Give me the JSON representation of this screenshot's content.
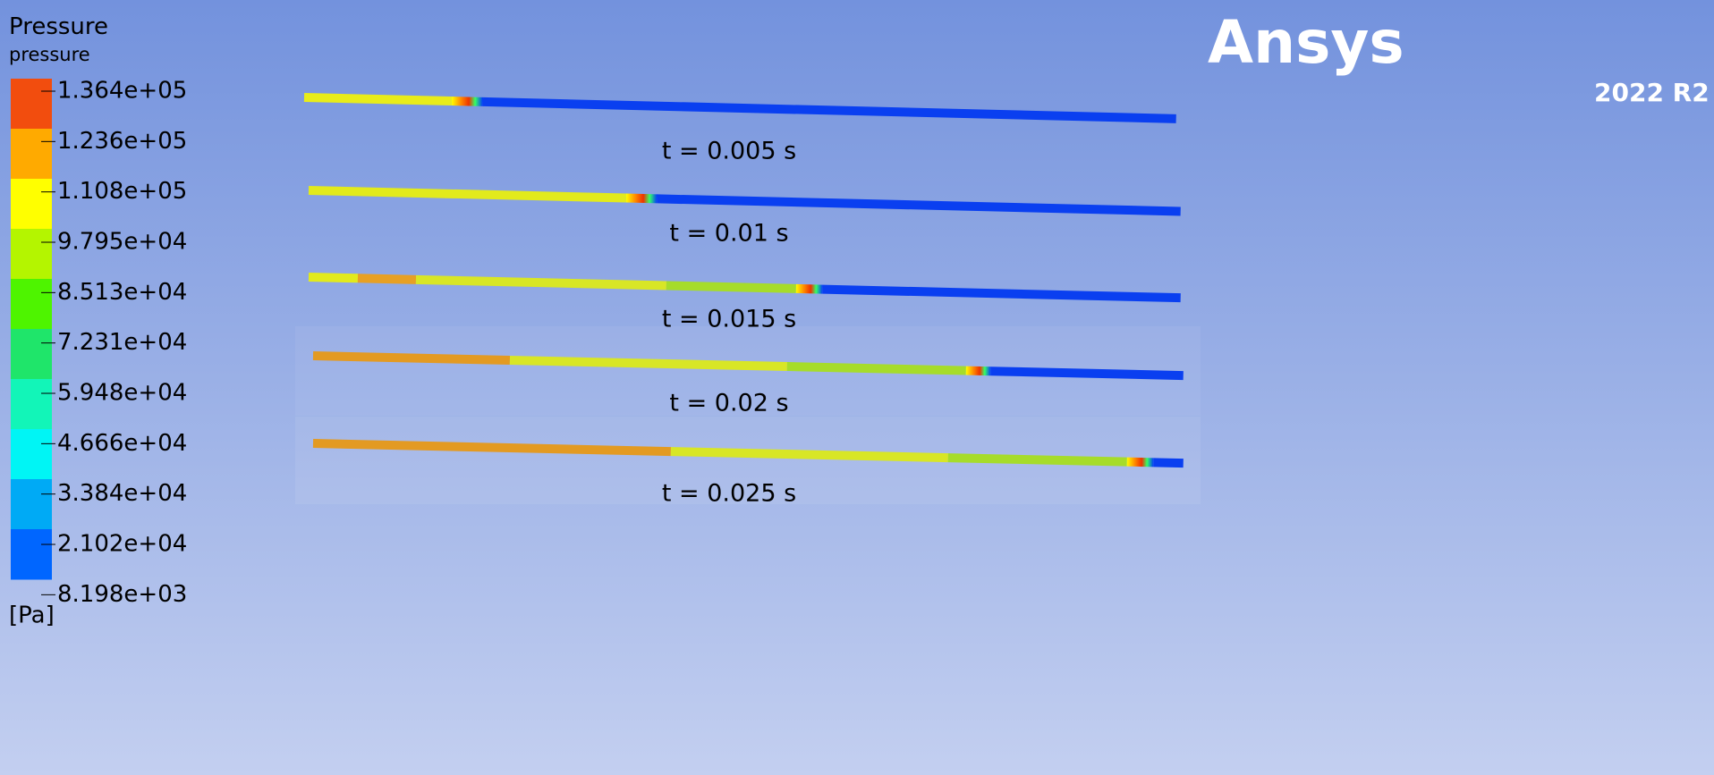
{
  "legend": {
    "title": "Pressure",
    "variable": "pressure",
    "labels": [
      "1.364e+05",
      "1.236e+05",
      "1.108e+05",
      "9.795e+04",
      "8.513e+04",
      "7.231e+04",
      "5.948e+04",
      "4.666e+04",
      "3.384e+04",
      "2.102e+04",
      "8.198e+03"
    ],
    "unit": "[Pa]"
  },
  "logo": {
    "name": "Ansys",
    "version": "2022 R2"
  },
  "captions": [
    "t = 0.005 s",
    "t = 0.01 s",
    "t = 0.015 s",
    "t = 0.02 s",
    "t = 0.025 s"
  ]
}
